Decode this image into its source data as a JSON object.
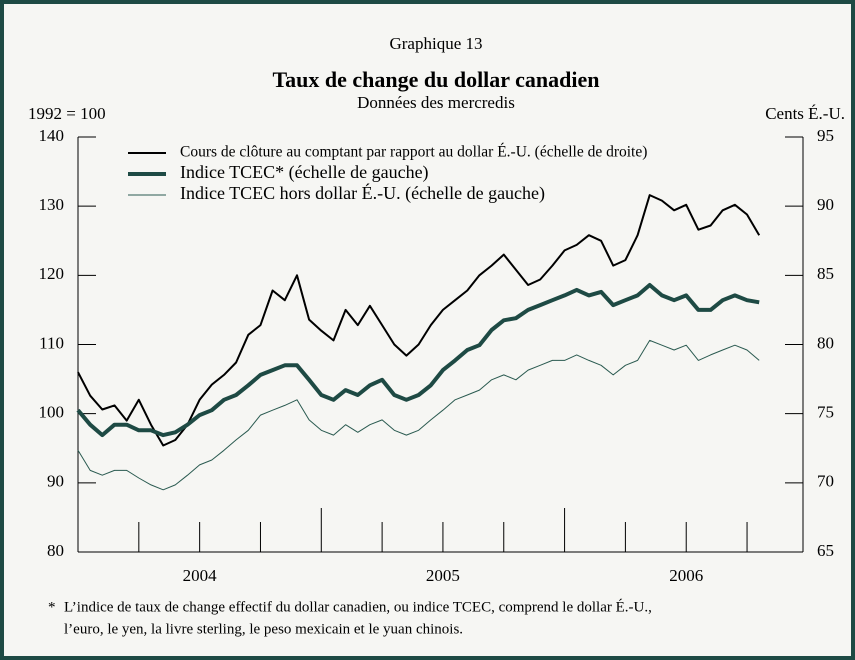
{
  "chart_data": {
    "type": "line",
    "label": "Graphique 13",
    "title": "Taux de change du dollar canadien",
    "subtitle": "Données des mercredis",
    "ylabel": "1992 = 100",
    "y2label": "Cents É.-U.",
    "ylim": [
      80,
      140
    ],
    "yticks": [
      80,
      90,
      100,
      110,
      120,
      130,
      140
    ],
    "y2lim": [
      65,
      95
    ],
    "y2ticks": [
      65,
      70,
      75,
      80,
      85,
      90,
      95
    ],
    "xlim": [
      2004,
      2006.98
    ],
    "xtick_labels": [
      {
        "value": 2004.5,
        "label": "2004"
      },
      {
        "value": 2005.5,
        "label": "2005"
      },
      {
        "value": 2006.5,
        "label": "2006"
      }
    ],
    "xticks_major": [
      2005,
      2006
    ],
    "xticks_minor": [
      2004.25,
      2004.5,
      2004.75,
      2005.25,
      2005.5,
      2005.75,
      2006.25,
      2006.5,
      2006.75
    ],
    "x": [
      2004.0,
      2004.05,
      2004.1,
      2004.15,
      2004.2,
      2004.25,
      2004.3,
      2004.35,
      2004.4,
      2004.45,
      2004.5,
      2004.55,
      2004.6,
      2004.65,
      2004.7,
      2004.75,
      2004.8,
      2004.85,
      2004.9,
      2004.95,
      2005.0,
      2005.05,
      2005.1,
      2005.15,
      2005.2,
      2005.25,
      2005.3,
      2005.35,
      2005.4,
      2005.45,
      2005.5,
      2005.55,
      2005.6,
      2005.65,
      2005.7,
      2005.75,
      2005.8,
      2005.85,
      2005.9,
      2005.95,
      2006.0,
      2006.05,
      2006.1,
      2006.15,
      2006.2,
      2006.25,
      2006.3,
      2006.35,
      2006.4,
      2006.45,
      2006.5,
      2006.55,
      2006.6,
      2006.65,
      2006.7,
      2006.75,
      2006.8
    ],
    "series": [
      {
        "name": "Cours de clôture au comptant par rapport au dollar É.-U. (échelle de droite)",
        "color": "#000000",
        "width": 2,
        "axis": "y2",
        "values": [
          78.0,
          76.3,
          75.3,
          75.6,
          74.5,
          76.0,
          74.2,
          72.7,
          73.1,
          74.2,
          76.0,
          77.1,
          77.8,
          78.7,
          80.7,
          81.4,
          83.9,
          83.2,
          85.0,
          81.8,
          81.0,
          80.3,
          82.5,
          81.4,
          82.8,
          81.4,
          80.0,
          79.2,
          80.0,
          81.4,
          82.5,
          83.2,
          83.9,
          85.0,
          85.7,
          86.5,
          85.4,
          84.3,
          84.7,
          85.7,
          86.8,
          87.2,
          87.9,
          87.5,
          85.7,
          86.1,
          87.9,
          90.8,
          90.4,
          89.7,
          90.1,
          88.3,
          88.6,
          89.7,
          90.1,
          89.4,
          87.9
        ]
      },
      {
        "name": "Indice TCEC* (échelle de gauche)",
        "color": "#1e4a44",
        "width": 4,
        "values": [
          100.5,
          98.4,
          96.9,
          98.4,
          98.4,
          97.6,
          97.6,
          96.9,
          97.3,
          98.4,
          99.8,
          100.5,
          102.0,
          102.7,
          104.1,
          105.6,
          106.3,
          107.0,
          107.0,
          104.9,
          102.7,
          102.0,
          103.4,
          102.7,
          104.1,
          104.9,
          102.7,
          102.0,
          102.7,
          104.1,
          106.3,
          107.7,
          109.2,
          109.9,
          112.1,
          113.5,
          113.8,
          115.0,
          115.7,
          116.4,
          117.1,
          117.9,
          117.1,
          117.6,
          115.7,
          116.4,
          117.1,
          118.6,
          117.1,
          116.4,
          117.1,
          115.0,
          115.0,
          116.4,
          117.1,
          116.4,
          116.1
        ]
      },
      {
        "name": "Indice TCEC hors dollar É.-U. (échelle de gauche)",
        "color": "#2a5a50",
        "width": 1,
        "values": [
          94.7,
          91.8,
          91.1,
          91.8,
          91.8,
          90.7,
          89.7,
          89.0,
          89.7,
          91.1,
          92.6,
          93.3,
          94.7,
          96.2,
          97.6,
          99.8,
          100.5,
          101.2,
          102.0,
          99.1,
          97.6,
          96.9,
          98.4,
          97.3,
          98.4,
          99.1,
          97.6,
          96.9,
          97.6,
          99.1,
          100.5,
          102.0,
          102.7,
          103.4,
          104.9,
          105.6,
          104.9,
          106.3,
          107.0,
          107.7,
          107.7,
          108.5,
          107.7,
          107.0,
          105.6,
          107.0,
          107.7,
          110.6,
          109.9,
          109.2,
          109.9,
          107.7,
          108.5,
          109.2,
          109.9,
          109.2,
          107.7
        ]
      }
    ],
    "footnote_mark": "*",
    "footnote": [
      "L’indice de taux de change effectif du dollar canadien, ou indice TCEC, comprend le dollar É.-U.,",
      "l’euro, le yen, la livre sterling, le peso mexicain et le yuan chinois."
    ]
  }
}
